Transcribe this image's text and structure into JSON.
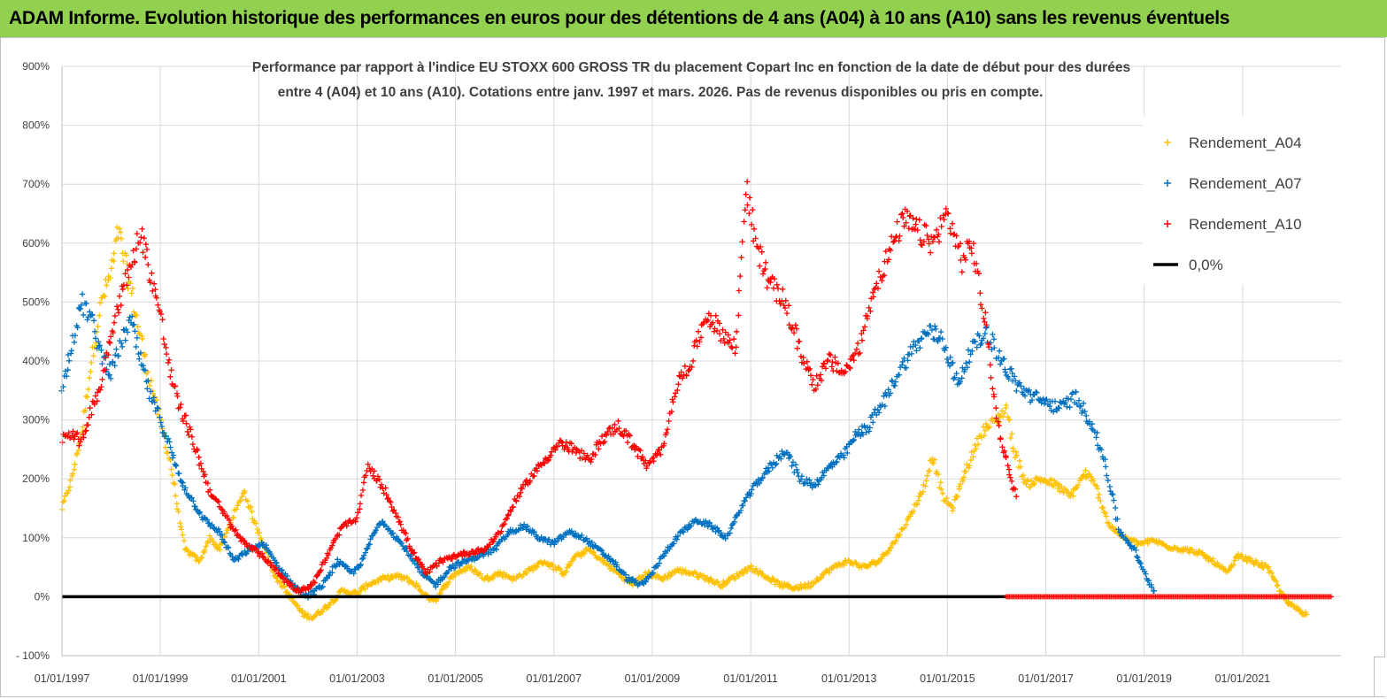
{
  "banner": {
    "title": "ADAM Informe. Evolution historique des performances en euros pour des détentions de 4 ans (A04) à 10 ans (A10) sans les revenus éventuels",
    "background": "#92d050"
  },
  "chart_data": {
    "type": "scatter",
    "title": "Performance par rapport à l'indice EU STOXX 600 GROSS TR  du placement Copart Inc en fonction de la date de début pour des durées entre 4 (A04) et 10 ans (A10). Cotations entre janv. 1997 et mars. 2026. Pas de revenus disponibles ou pris en compte.",
    "title_lines": [
      "Performance par rapport à l'indice EU STOXX 600 GROSS TR  du placement Copart Inc en fonction de la date de début pour des durées",
      "entre 4 (A04) et 10 ans (A10). Cotations entre janv. 1997 et mars. 2026. Pas de revenus disponibles ou pris en compte."
    ],
    "xlabel": "",
    "ylabel": "",
    "x_range": [
      "1997-01-01",
      "2023-01-01"
    ],
    "ylim": [
      -100,
      900
    ],
    "y_ticks": [
      -100,
      0,
      100,
      200,
      300,
      400,
      500,
      600,
      700,
      800,
      900
    ],
    "y_tick_labels": [
      "- 100%",
      "0%",
      "100%",
      "200%",
      "300%",
      "400%",
      "500%",
      "600%",
      "700%",
      "800%",
      "900%"
    ],
    "x_tick_labels": [
      "01/01/1997",
      "01/01/1999",
      "01/01/2001",
      "01/01/2003",
      "01/01/2005",
      "01/01/2007",
      "01/01/2009",
      "01/01/2011",
      "01/01/2013",
      "01/01/2015",
      "01/01/2017",
      "01/01/2019",
      "01/01/2021"
    ],
    "x_tick_years": [
      1997,
      1999,
      2001,
      2003,
      2005,
      2007,
      2009,
      2011,
      2013,
      2015,
      2017,
      2019,
      2021
    ],
    "grid": true,
    "legend_position": "top-right",
    "series": [
      {
        "name": "Rendement_A04",
        "color": "#ffc000",
        "marker": "plus",
        "points": [
          [
            1997.0,
            150
          ],
          [
            1997.2,
            200
          ],
          [
            1997.4,
            280
          ],
          [
            1997.6,
            400
          ],
          [
            1997.8,
            500
          ],
          [
            1998.0,
            550
          ],
          [
            1998.15,
            620
          ],
          [
            1998.3,
            560
          ],
          [
            1998.5,
            480
          ],
          [
            1998.7,
            400
          ],
          [
            1998.9,
            330
          ],
          [
            1999.0,
            300
          ],
          [
            1999.2,
            230
          ],
          [
            1999.35,
            150
          ],
          [
            1999.5,
            80
          ],
          [
            1999.8,
            60
          ],
          [
            2000.0,
            100
          ],
          [
            2000.2,
            80
          ],
          [
            2000.4,
            120
          ],
          [
            2000.7,
            180
          ],
          [
            2000.9,
            130
          ],
          [
            2001.1,
            90
          ],
          [
            2001.3,
            40
          ],
          [
            2001.6,
            5
          ],
          [
            2001.9,
            -30
          ],
          [
            2002.1,
            -35
          ],
          [
            2002.4,
            -15
          ],
          [
            2002.7,
            10
          ],
          [
            2003.0,
            5
          ],
          [
            2003.2,
            20
          ],
          [
            2003.5,
            30
          ],
          [
            2003.8,
            35
          ],
          [
            2004.0,
            30
          ],
          [
            2004.2,
            20
          ],
          [
            2004.4,
            0
          ],
          [
            2004.6,
            -5
          ],
          [
            2004.8,
            20
          ],
          [
            2005.0,
            40
          ],
          [
            2005.3,
            50
          ],
          [
            2005.6,
            30
          ],
          [
            2005.9,
            40
          ],
          [
            2006.2,
            30
          ],
          [
            2006.5,
            45
          ],
          [
            2006.8,
            60
          ],
          [
            2007.0,
            50
          ],
          [
            2007.2,
            40
          ],
          [
            2007.4,
            65
          ],
          [
            2007.7,
            80
          ],
          [
            2008.0,
            60
          ],
          [
            2008.3,
            40
          ],
          [
            2008.6,
            20
          ],
          [
            2008.9,
            40
          ],
          [
            2009.2,
            30
          ],
          [
            2009.5,
            45
          ],
          [
            2009.8,
            40
          ],
          [
            2010.0,
            35
          ],
          [
            2010.4,
            20
          ],
          [
            2010.8,
            40
          ],
          [
            2011.0,
            50
          ],
          [
            2011.3,
            35
          ],
          [
            2011.6,
            20
          ],
          [
            2011.9,
            15
          ],
          [
            2012.2,
            20
          ],
          [
            2012.5,
            40
          ],
          [
            2012.8,
            55
          ],
          [
            2013.0,
            60
          ],
          [
            2013.3,
            50
          ],
          [
            2013.6,
            60
          ],
          [
            2013.9,
            90
          ],
          [
            2014.2,
            130
          ],
          [
            2014.5,
            180
          ],
          [
            2014.7,
            240
          ],
          [
            2014.9,
            170
          ],
          [
            2015.1,
            150
          ],
          [
            2015.4,
            220
          ],
          [
            2015.7,
            280
          ],
          [
            2016.0,
            300
          ],
          [
            2016.2,
            320
          ],
          [
            2016.35,
            250
          ],
          [
            2016.6,
            190
          ],
          [
            2016.9,
            200
          ],
          [
            2017.2,
            190
          ],
          [
            2017.5,
            170
          ],
          [
            2017.8,
            210
          ],
          [
            2018.0,
            190
          ],
          [
            2018.3,
            120
          ],
          [
            2018.6,
            100
          ],
          [
            2018.9,
            90
          ],
          [
            2019.2,
            95
          ],
          [
            2019.5,
            85
          ],
          [
            2019.8,
            80
          ],
          [
            2020.1,
            75
          ],
          [
            2020.4,
            60
          ],
          [
            2020.7,
            40
          ],
          [
            2020.9,
            70
          ],
          [
            2021.2,
            60
          ],
          [
            2021.5,
            50
          ],
          [
            2021.7,
            20
          ],
          [
            2021.9,
            -10
          ],
          [
            2022.1,
            -20
          ],
          [
            2022.3,
            -30
          ]
        ]
      },
      {
        "name": "Rendement_A07",
        "color": "#0070c0",
        "marker": "plus",
        "points": [
          [
            1997.0,
            350
          ],
          [
            1997.2,
            430
          ],
          [
            1997.4,
            500
          ],
          [
            1997.6,
            470
          ],
          [
            1997.8,
            410
          ],
          [
            1998.0,
            380
          ],
          [
            1998.2,
            430
          ],
          [
            1998.4,
            470
          ],
          [
            1998.6,
            400
          ],
          [
            1998.8,
            340
          ],
          [
            1999.0,
            300
          ],
          [
            1999.2,
            250
          ],
          [
            1999.4,
            200
          ],
          [
            1999.6,
            170
          ],
          [
            1999.9,
            130
          ],
          [
            2000.2,
            110
          ],
          [
            2000.5,
            60
          ],
          [
            2000.8,
            80
          ],
          [
            2001.1,
            90
          ],
          [
            2001.4,
            50
          ],
          [
            2001.7,
            20
          ],
          [
            2002.0,
            0
          ],
          [
            2002.3,
            20
          ],
          [
            2002.6,
            60
          ],
          [
            2002.9,
            40
          ],
          [
            2003.1,
            60
          ],
          [
            2003.3,
            100
          ],
          [
            2003.5,
            130
          ],
          [
            2003.8,
            100
          ],
          [
            2004.0,
            80
          ],
          [
            2004.3,
            40
          ],
          [
            2004.6,
            20
          ],
          [
            2004.9,
            50
          ],
          [
            2005.2,
            60
          ],
          [
            2005.5,
            70
          ],
          [
            2005.8,
            80
          ],
          [
            2006.1,
            110
          ],
          [
            2006.4,
            120
          ],
          [
            2006.7,
            100
          ],
          [
            2007.0,
            90
          ],
          [
            2007.3,
            110
          ],
          [
            2007.6,
            100
          ],
          [
            2007.9,
            80
          ],
          [
            2008.2,
            60
          ],
          [
            2008.5,
            30
          ],
          [
            2008.8,
            20
          ],
          [
            2009.0,
            40
          ],
          [
            2009.3,
            80
          ],
          [
            2009.6,
            110
          ],
          [
            2009.9,
            130
          ],
          [
            2010.2,
            120
          ],
          [
            2010.5,
            100
          ],
          [
            2010.8,
            150
          ],
          [
            2011.1,
            190
          ],
          [
            2011.4,
            220
          ],
          [
            2011.7,
            250
          ],
          [
            2012.0,
            200
          ],
          [
            2012.3,
            190
          ],
          [
            2012.6,
            220
          ],
          [
            2012.9,
            240
          ],
          [
            2013.1,
            270
          ],
          [
            2013.4,
            290
          ],
          [
            2013.7,
            330
          ],
          [
            2014.0,
            380
          ],
          [
            2014.3,
            420
          ],
          [
            2014.6,
            450
          ],
          [
            2014.9,
            440
          ],
          [
            2015.2,
            360
          ],
          [
            2015.5,
            420
          ],
          [
            2015.8,
            450
          ],
          [
            2016.1,
            400
          ],
          [
            2016.4,
            360
          ],
          [
            2016.7,
            340
          ],
          [
            2017.0,
            330
          ],
          [
            2017.3,
            320
          ],
          [
            2017.6,
            340
          ],
          [
            2017.9,
            300
          ],
          [
            2018.2,
            230
          ],
          [
            2018.5,
            110
          ],
          [
            2018.8,
            80
          ],
          [
            2019.0,
            40
          ],
          [
            2019.2,
            10
          ]
        ]
      },
      {
        "name": "Rendement_A10",
        "color": "#ff0000",
        "marker": "plus",
        "points": [
          [
            1997.0,
            270
          ],
          [
            1997.2,
            280
          ],
          [
            1997.4,
            260
          ],
          [
            1997.6,
            320
          ],
          [
            1997.8,
            360
          ],
          [
            1998.0,
            450
          ],
          [
            1998.2,
            510
          ],
          [
            1998.4,
            560
          ],
          [
            1998.6,
            620
          ],
          [
            1998.8,
            550
          ],
          [
            1999.0,
            480
          ],
          [
            1999.2,
            380
          ],
          [
            1999.4,
            320
          ],
          [
            1999.6,
            280
          ],
          [
            1999.8,
            230
          ],
          [
            2000.0,
            180
          ],
          [
            2000.3,
            140
          ],
          [
            2000.6,
            100
          ],
          [
            2000.9,
            80
          ],
          [
            2001.2,
            60
          ],
          [
            2001.5,
            30
          ],
          [
            2001.8,
            10
          ],
          [
            2002.1,
            20
          ],
          [
            2002.4,
            70
          ],
          [
            2002.7,
            120
          ],
          [
            2003.0,
            130
          ],
          [
            2003.2,
            220
          ],
          [
            2003.5,
            190
          ],
          [
            2003.8,
            140
          ],
          [
            2004.1,
            80
          ],
          [
            2004.4,
            40
          ],
          [
            2004.7,
            60
          ],
          [
            2005.0,
            70
          ],
          [
            2005.3,
            75
          ],
          [
            2005.6,
            80
          ],
          [
            2005.9,
            110
          ],
          [
            2006.2,
            160
          ],
          [
            2006.5,
            200
          ],
          [
            2006.8,
            230
          ],
          [
            2007.1,
            260
          ],
          [
            2007.4,
            250
          ],
          [
            2007.7,
            230
          ],
          [
            2008.0,
            270
          ],
          [
            2008.3,
            290
          ],
          [
            2008.6,
            260
          ],
          [
            2008.9,
            220
          ],
          [
            2009.2,
            250
          ],
          [
            2009.5,
            360
          ],
          [
            2009.8,
            400
          ],
          [
            2010.1,
            480
          ],
          [
            2010.4,
            450
          ],
          [
            2010.7,
            420
          ],
          [
            2010.9,
            700
          ],
          [
            2011.1,
            600
          ],
          [
            2011.4,
            530
          ],
          [
            2011.7,
            500
          ],
          [
            2012.0,
            420
          ],
          [
            2012.3,
            360
          ],
          [
            2012.6,
            400
          ],
          [
            2012.9,
            380
          ],
          [
            2013.2,
            420
          ],
          [
            2013.5,
            520
          ],
          [
            2013.8,
            580
          ],
          [
            2014.1,
            640
          ],
          [
            2014.4,
            620
          ],
          [
            2014.7,
            600
          ],
          [
            2015.0,
            650
          ],
          [
            2015.3,
            570
          ],
          [
            2015.5,
            600
          ],
          [
            2015.8,
            450
          ],
          [
            2016.0,
            300
          ],
          [
            2016.2,
            230
          ],
          [
            2016.4,
            170
          ]
        ]
      },
      {
        "name": "0,0%",
        "color": "#000000",
        "marker": "line",
        "points": [
          [
            1997.0,
            0
          ],
          [
            2016.2,
            0
          ]
        ]
      }
    ],
    "zero_band": {
      "color": "#ff0000",
      "from": 2016.2,
      "to": 2022.8,
      "value": 0
    }
  }
}
